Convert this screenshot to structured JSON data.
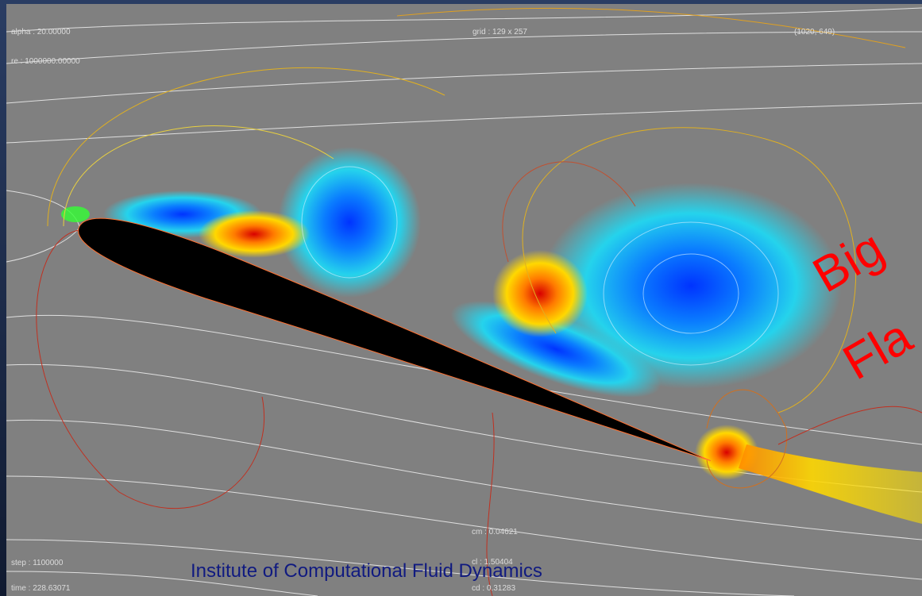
{
  "overlay": {
    "alpha": "alpha : 20.00000",
    "re": "re : 1000000.00000",
    "grid": "grid : 129 x 257",
    "cursor": "(1020, 649)",
    "step": "step : 1100000",
    "time": "time : 228.63071",
    "cm": "cm : 0.04621",
    "cl": "cl : 1.50404",
    "cd": "cd : 0.31283"
  },
  "caption": "Institute of Computational Fluid Dynamics",
  "banner": {
    "line1": "Big",
    "line2": "Fla"
  }
}
